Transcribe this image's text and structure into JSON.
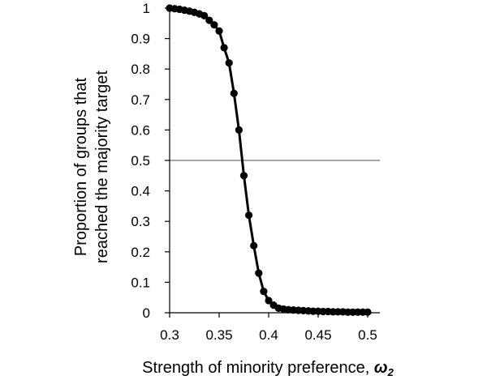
{
  "chart_data": {
    "type": "line",
    "xlabel": "Strength of minority preference, ",
    "xlabel_symbol": "ω",
    "xlabel_subscript": "2",
    "ylabel_lines": [
      "Proportion of groups that",
      "reached the majority target"
    ],
    "xlim": [
      0.3,
      0.5
    ],
    "ylim": [
      0,
      1
    ],
    "x_ticks": [
      "0.3",
      "0.35",
      "0.4",
      "0.45",
      "0.5"
    ],
    "y_ticks": [
      "0",
      "0.1",
      "0.2",
      "0.3",
      "0.4",
      "0.5",
      "0.6",
      "0.7",
      "0.8",
      "0.9",
      "1"
    ],
    "grid": false,
    "reference_line": {
      "y": 0.5,
      "color": "#a6a6a6"
    },
    "series": [
      {
        "color": "#000000",
        "x": [
          0.3,
          0.305,
          0.31,
          0.315,
          0.32,
          0.325,
          0.33,
          0.335,
          0.34,
          0.345,
          0.35,
          0.355,
          0.36,
          0.365,
          0.37,
          0.375,
          0.38,
          0.385,
          0.39,
          0.395,
          0.4,
          0.405,
          0.41,
          0.415,
          0.42,
          0.425,
          0.43,
          0.435,
          0.44,
          0.445,
          0.45,
          0.455,
          0.46,
          0.465,
          0.47,
          0.475,
          0.48,
          0.485,
          0.49,
          0.495,
          0.5
        ],
        "y": [
          1.0,
          0.998,
          0.996,
          0.993,
          0.99,
          0.986,
          0.981,
          0.975,
          0.96,
          0.945,
          0.925,
          0.87,
          0.82,
          0.72,
          0.6,
          0.45,
          0.32,
          0.22,
          0.13,
          0.07,
          0.04,
          0.025,
          0.015,
          0.012,
          0.01,
          0.009,
          0.008,
          0.007,
          0.006,
          0.005,
          0.005,
          0.004,
          0.004,
          0.003,
          0.003,
          0.003,
          0.002,
          0.002,
          0.002,
          0.002,
          0.002
        ]
      }
    ]
  }
}
